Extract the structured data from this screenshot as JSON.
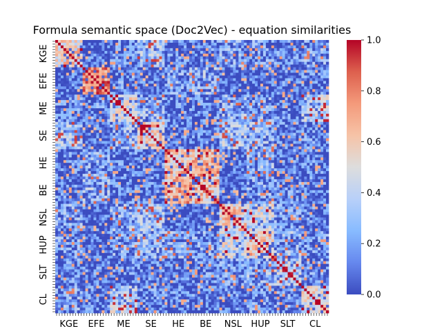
{
  "chart_data": {
    "type": "heatmap",
    "title": "Formula semantic space (Doc2Vec) - equation similarities",
    "xlabel": "",
    "ylabel": "",
    "groups": [
      {
        "label": "KGE",
        "count": 10
      },
      {
        "label": "EFE",
        "count": 10
      },
      {
        "label": "ME",
        "count": 10
      },
      {
        "label": "SE",
        "count": 10
      },
      {
        "label": "HE",
        "count": 10
      },
      {
        "label": "BE",
        "count": 10
      },
      {
        "label": "NSL",
        "count": 10
      },
      {
        "label": "HUP",
        "count": 10
      },
      {
        "label": "SLT",
        "count": 10
      },
      {
        "label": "CL",
        "count": 10
      }
    ],
    "x_tick_labels": [
      "KGE",
      "EFE",
      "ME",
      "SE",
      "HE",
      "BE",
      "NSL",
      "HUP",
      "SLT",
      "CL"
    ],
    "y_tick_labels": [
      "KGE",
      "EFE",
      "ME",
      "SE",
      "HE",
      "BE",
      "NSL",
      "HUP",
      "SLT",
      "CL"
    ],
    "block_similarity": [
      [
        0.55,
        0.05,
        0.12,
        0.3,
        0.1,
        0.1,
        0.2,
        0.15,
        0.12,
        0.2
      ],
      [
        0.05,
        0.75,
        0.15,
        0.05,
        0.2,
        0.25,
        0.05,
        0.05,
        0.1,
        0.1
      ],
      [
        0.12,
        0.15,
        0.45,
        0.25,
        0.1,
        0.1,
        0.25,
        0.2,
        0.1,
        0.35
      ],
      [
        0.3,
        0.05,
        0.25,
        0.55,
        0.1,
        0.1,
        0.3,
        0.25,
        0.1,
        0.15
      ],
      [
        0.1,
        0.2,
        0.1,
        0.1,
        0.6,
        0.65,
        0.05,
        0.25,
        0.1,
        0.1
      ],
      [
        0.1,
        0.25,
        0.1,
        0.1,
        0.65,
        0.6,
        0.05,
        0.2,
        0.15,
        0.1
      ],
      [
        0.2,
        0.05,
        0.25,
        0.3,
        0.05,
        0.05,
        0.55,
        0.4,
        0.15,
        0.1
      ],
      [
        0.15,
        0.05,
        0.2,
        0.25,
        0.25,
        0.2,
        0.4,
        0.6,
        0.25,
        0.15
      ],
      [
        0.12,
        0.1,
        0.1,
        0.1,
        0.1,
        0.15,
        0.15,
        0.25,
        0.35,
        0.15
      ],
      [
        0.2,
        0.1,
        0.35,
        0.15,
        0.1,
        0.1,
        0.1,
        0.15,
        0.15,
        0.5
      ]
    ],
    "diagonal_value": 1.0,
    "value_range": [
      0.0,
      1.0
    ],
    "colormap": "coolwarm",
    "colormap_stops": [
      "#3b4cc0",
      "#6688ee",
      "#88bbff",
      "#b8d0f9",
      "#dddddd",
      "#f6c3a7",
      "#f49a7b",
      "#dd604e",
      "#b40426"
    ],
    "colorbar": {
      "ticks": [
        0.0,
        0.2,
        0.4,
        0.6,
        0.8,
        1.0
      ],
      "tick_labels": [
        "0.0",
        "0.2",
        "0.4",
        "0.6",
        "0.8",
        "1.0"
      ]
    }
  }
}
